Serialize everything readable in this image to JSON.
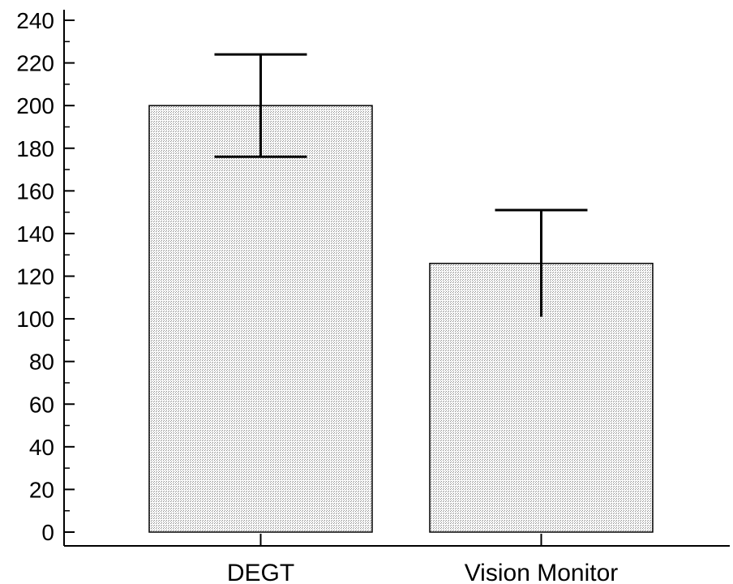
{
  "chart_data": {
    "type": "bar",
    "title": "",
    "xlabel": "",
    "ylabel": "",
    "categories": [
      "DEGT",
      "Vision Monitor"
    ],
    "values": [
      200,
      126
    ],
    "error_bars": [
      24,
      25
    ],
    "ylim": [
      0,
      240
    ],
    "yticks": [
      "0",
      "20",
      "40",
      "60",
      "80",
      "100",
      "120",
      "140",
      "160",
      "180",
      "200",
      "220",
      "240"
    ],
    "grid": false,
    "legend": "none",
    "bar_color": "#e0e0e0",
    "edge_color": "#000000"
  }
}
